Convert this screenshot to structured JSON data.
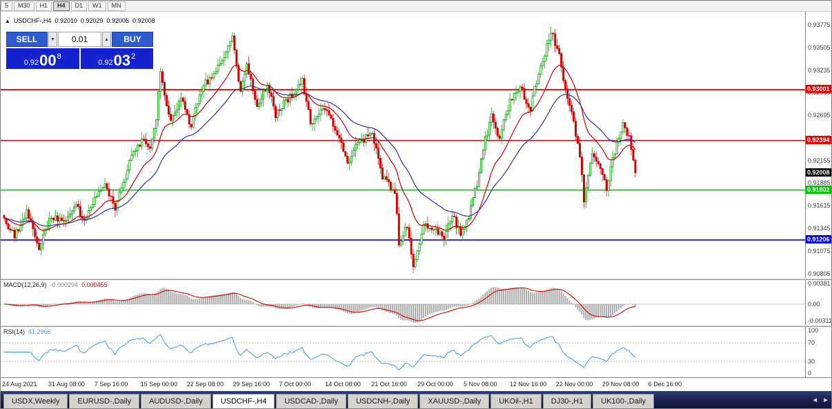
{
  "toolbar": {
    "timeframes": [
      {
        "label": "5",
        "active": false
      },
      {
        "label": "M30",
        "active": false
      },
      {
        "label": "H1",
        "active": false
      },
      {
        "label": "H4",
        "active": true
      },
      {
        "label": "D1",
        "active": false
      },
      {
        "label": "W1",
        "active": false
      },
      {
        "label": "MN",
        "active": false
      }
    ]
  },
  "chart": {
    "panel_toggle_icon": "▲",
    "title_symbol": "USDCHF-,H4",
    "ohlc_open": "0.92010",
    "ohlc_high": "0.92029",
    "ohlc_low": "0.92006",
    "ohlc_close": "0.92008"
  },
  "trade_panel": {
    "sell_label": "SELL",
    "buy_label": "BUY",
    "lot_value": "0.01",
    "lot_down_icon": "▼",
    "lot_up_icon": "▲",
    "sell_price_head": "0.92",
    "sell_price_pips": "00",
    "sell_price_point": "8",
    "buy_price_head": "0.92",
    "buy_price_pips": "03",
    "buy_price_point": "2"
  },
  "chart_data": {
    "type": "candlestick",
    "symbol": "USDCHF-",
    "timeframe": "H4",
    "price_range": {
      "top": 0.93775,
      "bottom": 0.90805,
      "label_step": 0.0027
    },
    "y_axis_labels": [
      "0.93775",
      "0.93505",
      "0.93235",
      "0.92965",
      "0.92695",
      "0.92425",
      "0.92155",
      "0.91885",
      "0.91615",
      "0.91345",
      "0.91075",
      "0.90805"
    ],
    "x_axis_labels": [
      "24 Aug 2021",
      "31 Aug 08:00",
      "7 Sep 16:00",
      "15 Sep 00:00",
      "22 Sep 08:00",
      "29 Sep 16:00",
      "7 Oct 00:00",
      "14 Oct 08:00",
      "21 Oct 16:00",
      "29 Oct 00:00",
      "5 Nov 08:00",
      "12 Nov 16:00",
      "22 Nov 00:00",
      "29 Nov 08:00",
      "6 Dec 16:00"
    ],
    "num_candles": 308,
    "anchors": [
      [
        0,
        0.915
      ],
      [
        6,
        0.9124
      ],
      [
        12,
        0.9155
      ],
      [
        18,
        0.9112
      ],
      [
        24,
        0.915
      ],
      [
        30,
        0.9143
      ],
      [
        36,
        0.9161
      ],
      [
        40,
        0.9142
      ],
      [
        45,
        0.917
      ],
      [
        50,
        0.9186
      ],
      [
        55,
        0.9158
      ],
      [
        62,
        0.9213
      ],
      [
        68,
        0.924
      ],
      [
        72,
        0.9232
      ],
      [
        75,
        0.9262
      ],
      [
        77,
        0.9326
      ],
      [
        80,
        0.9282
      ],
      [
        82,
        0.926
      ],
      [
        87,
        0.9292
      ],
      [
        92,
        0.9256
      ],
      [
        97,
        0.9302
      ],
      [
        103,
        0.9318
      ],
      [
        109,
        0.9342
      ],
      [
        112,
        0.9362
      ],
      [
        116,
        0.9295
      ],
      [
        119,
        0.9331
      ],
      [
        124,
        0.9282
      ],
      [
        129,
        0.9306
      ],
      [
        133,
        0.927
      ],
      [
        140,
        0.9293
      ],
      [
        146,
        0.931
      ],
      [
        150,
        0.9262
      ],
      [
        157,
        0.9276
      ],
      [
        163,
        0.925
      ],
      [
        168,
        0.9212
      ],
      [
        173,
        0.9236
      ],
      [
        180,
        0.9246
      ],
      [
        185,
        0.9196
      ],
      [
        191,
        0.9178
      ],
      [
        193,
        0.9118
      ],
      [
        197,
        0.9136
      ],
      [
        200,
        0.9092
      ],
      [
        205,
        0.9139
      ],
      [
        210,
        0.9136
      ],
      [
        215,
        0.912
      ],
      [
        219,
        0.9151
      ],
      [
        223,
        0.9128
      ],
      [
        227,
        0.915
      ],
      [
        231,
        0.9188
      ],
      [
        234,
        0.9232
      ],
      [
        238,
        0.9268
      ],
      [
        242,
        0.9241
      ],
      [
        247,
        0.9288
      ],
      [
        252,
        0.9302
      ],
      [
        257,
        0.9278
      ],
      [
        261,
        0.9322
      ],
      [
        265,
        0.9352
      ],
      [
        267,
        0.9371
      ],
      [
        271,
        0.9341
      ],
      [
        274,
        0.9302
      ],
      [
        277,
        0.9272
      ],
      [
        281,
        0.9222
      ],
      [
        283,
        0.9168
      ],
      [
        287,
        0.9228
      ],
      [
        291,
        0.9203
      ],
      [
        294,
        0.9183
      ],
      [
        298,
        0.9226
      ],
      [
        302,
        0.9262
      ],
      [
        305,
        0.9241
      ],
      [
        308,
        0.9201
      ]
    ],
    "up_color": "#00A000",
    "down_color": "#D40000",
    "ma_fast": {
      "period": 18,
      "color": "#CC0000"
    },
    "ma_slow": {
      "period": 40,
      "color": "#3030A0"
    },
    "price_lines": [
      {
        "label": "0.93001",
        "price": 0.93001,
        "color": "#E60000"
      },
      {
        "label": "0.92394",
        "price": 0.92394,
        "color": "#E60000"
      },
      {
        "label": "0.91802",
        "price": 0.91802,
        "color": "#00C800"
      },
      {
        "label": "0.91206",
        "price": 0.91206,
        "color": "#0000E6"
      }
    ],
    "current_price": {
      "label": "0.92008",
      "price": 0.92008,
      "color": "#000000"
    },
    "indicators": {
      "macd": {
        "label": "MACD(12,26,9)",
        "value_main": "-0.000294",
        "value_signal": "0.000455",
        "axis_labels": [
          "0.00381",
          "0.00",
          "-0.00311"
        ],
        "histogram_color": "#ABABAB",
        "signal_color": "#E00000"
      },
      "rsi": {
        "label": "RSI(14)",
        "value": "41.2966",
        "axis_labels": [
          "100",
          "70",
          "30",
          "0"
        ],
        "levels": [
          70,
          30
        ],
        "line_color": "#3E9CDB"
      }
    }
  },
  "tab_bar": {
    "scroll_left_icon": "◄",
    "scroll_right_icon": "►",
    "tabs": [
      {
        "label": "USDX,Weekly",
        "active": false
      },
      {
        "label": "EURUSD-,Daily",
        "active": false
      },
      {
        "label": "AUDUSD-,Daily",
        "active": false
      },
      {
        "label": "USDCHF-,H4",
        "active": true
      },
      {
        "label": "USDCAD-,Daily",
        "active": false
      },
      {
        "label": "USDCNH-,Daily",
        "active": false
      },
      {
        "label": "XAUUSD-,Daily",
        "active": false
      },
      {
        "label": "UKOil-,H1",
        "active": false
      },
      {
        "label": "DJ30-,H1",
        "active": false
      },
      {
        "label": "UK100-,Daily",
        "active": false
      }
    ]
  }
}
